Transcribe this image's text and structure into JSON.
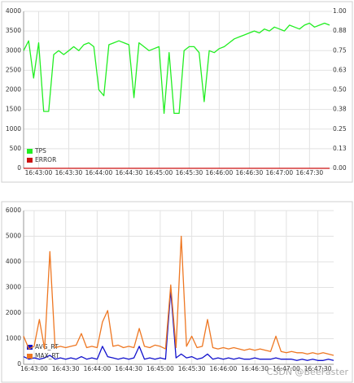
{
  "chart_data": [
    {
      "type": "line",
      "categories": [
        null,
        null,
        null,
        "16:43:00",
        null,
        null,
        null,
        null,
        null,
        "16:43:30",
        null,
        null,
        null,
        null,
        null,
        "16:44:00",
        null,
        null,
        null,
        null,
        null,
        "16:44:30",
        null,
        null,
        null,
        null,
        null,
        "16:45:00",
        null,
        null,
        null,
        null,
        null,
        "16:45:30",
        null,
        null,
        null,
        null,
        null,
        "16:46:00",
        null,
        null,
        null,
        null,
        null,
        "16:46:30",
        null,
        null,
        null,
        null,
        null,
        "16:47:00",
        null,
        null,
        null,
        null,
        null,
        "16:47:30",
        null,
        null,
        null,
        null
      ],
      "series": [
        {
          "name": "TPS",
          "color": "#22ee22",
          "values": [
            3000,
            3250,
            2300,
            3200,
            1450,
            1450,
            2900,
            3000,
            2900,
            3000,
            3100,
            3000,
            3150,
            3200,
            3100,
            2000,
            1850,
            3150,
            3200,
            3250,
            3200,
            3150,
            1800,
            3200,
            3100,
            3000,
            3050,
            3100,
            1400,
            2950,
            1400,
            1400,
            3000,
            3100,
            3100,
            2950,
            1700,
            3000,
            2950,
            3050,
            3100,
            3200,
            3300,
            3350,
            3400,
            3450,
            3500,
            3450,
            3550,
            3500,
            3600,
            3550,
            3500,
            3650,
            3600,
            3550,
            3650,
            3700,
            3600,
            3650,
            3700,
            3650
          ]
        },
        {
          "name": "ERROR",
          "color": "#cc1111",
          "axis": "y2",
          "values": [
            0,
            0,
            0,
            0,
            0,
            0,
            0,
            0,
            0,
            0,
            0,
            0,
            0,
            0,
            0,
            0,
            0,
            0,
            0,
            0,
            0,
            0,
            0,
            0,
            0,
            0,
            0,
            0,
            0,
            0,
            0,
            0,
            0,
            0,
            0,
            0,
            0,
            0,
            0,
            0,
            0,
            0,
            0,
            0,
            0,
            0,
            0,
            0,
            0,
            0,
            0,
            0,
            0,
            0,
            0,
            0,
            0,
            0,
            0,
            0,
            0,
            0
          ]
        }
      ],
      "ylim": [
        0,
        4000
      ],
      "yticks": [
        0,
        500,
        1000,
        1500,
        2000,
        2500,
        3000,
        3500,
        4000
      ],
      "y2lim": [
        0,
        1
      ],
      "y2ticks": [
        {
          "value": 0,
          "label": "0.00"
        },
        {
          "value": 0.125,
          "label": "0.13"
        },
        {
          "value": 0.25,
          "label": "0.25"
        },
        {
          "value": 0.375,
          "label": "0.38"
        },
        {
          "value": 0.5,
          "label": "0.50"
        },
        {
          "value": 0.625,
          "label": "0.63"
        },
        {
          "value": 0.75,
          "label": "0.75"
        },
        {
          "value": 0.875,
          "label": "0.88"
        },
        {
          "value": 1,
          "label": "1.00"
        }
      ],
      "grid": true,
      "legend": "lower left"
    },
    {
      "type": "line",
      "categories": [
        null,
        null,
        "16:43:00",
        null,
        null,
        null,
        null,
        null,
        "16:43:30",
        null,
        null,
        null,
        null,
        null,
        "16:44:00",
        null,
        null,
        null,
        null,
        null,
        "16:44:30",
        null,
        null,
        null,
        null,
        null,
        "16:45:00",
        null,
        null,
        null,
        null,
        null,
        "16:45:30",
        null,
        null,
        null,
        null,
        null,
        "16:46:00",
        null,
        null,
        null,
        null,
        null,
        "16:46:30",
        null,
        null,
        null,
        null,
        null,
        "16:47:00",
        null,
        null,
        null,
        null,
        null,
        "16:47:30",
        null,
        null,
        null
      ],
      "series": [
        {
          "name": "AVG_RT",
          "color": "#1111cc",
          "values": [
            300,
            200,
            250,
            200,
            250,
            350,
            200,
            250,
            200,
            250,
            200,
            300,
            200,
            250,
            200,
            700,
            300,
            250,
            200,
            250,
            200,
            250,
            700,
            200,
            250,
            200,
            250,
            200,
            2900,
            250,
            400,
            250,
            300,
            200,
            250,
            400,
            200,
            250,
            200,
            250,
            200,
            250,
            200,
            200,
            250,
            200,
            200,
            200,
            250,
            200,
            200,
            200,
            150,
            200,
            150,
            200,
            150,
            150,
            200,
            150
          ]
        },
        {
          "name": "MAX_RT",
          "color": "#ee7722",
          "values": [
            1100,
            600,
            700,
            1750,
            600,
            4400,
            650,
            700,
            650,
            700,
            750,
            1200,
            650,
            700,
            650,
            1650,
            2100,
            700,
            750,
            650,
            700,
            650,
            1400,
            700,
            650,
            750,
            700,
            600,
            3100,
            650,
            5000,
            700,
            1100,
            650,
            700,
            1750,
            650,
            600,
            650,
            600,
            650,
            600,
            550,
            600,
            550,
            600,
            550,
            500,
            1100,
            500,
            450,
            500,
            450,
            450,
            400,
            450,
            400,
            450,
            400,
            350
          ]
        }
      ],
      "ylim": [
        0,
        6000
      ],
      "yticks": [
        0,
        1000,
        2000,
        3000,
        4000,
        5000,
        6000
      ],
      "grid": true,
      "legend": "lower left"
    }
  ],
  "watermark": "CSDN @BeeFaster"
}
